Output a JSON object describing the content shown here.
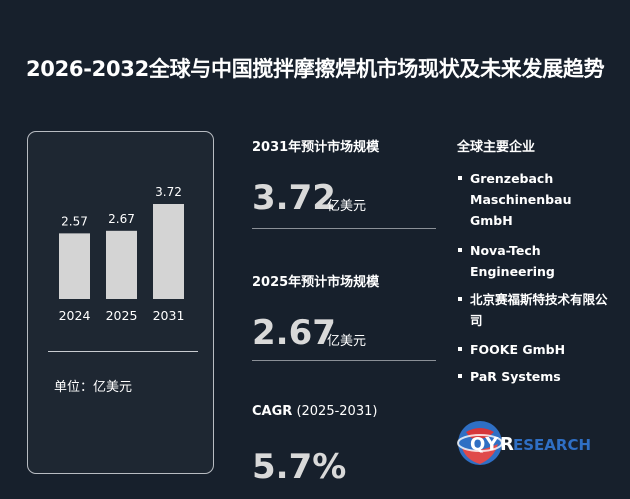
{
  "header": {
    "title": "2026-2032全球与中国搅拌摩擦焊机市场现状及未来发展趋势"
  },
  "chart_data": {
    "type": "bar",
    "categories": [
      "2024",
      "2025",
      "2031"
    ],
    "values": [
      2.57,
      2.67,
      3.72
    ],
    "data_labels": [
      "2.57",
      "2.67",
      "3.72"
    ],
    "unit_label": "单位：亿美元",
    "bar_color": "#d4d4d4",
    "ylim": [
      0,
      3.72
    ]
  },
  "metrics": {
    "m2031": {
      "label": "2031年预计市场规模",
      "value": "3.72",
      "unit": "亿美元"
    },
    "m2025": {
      "label": "2025年预计市场规模",
      "value": "2.67",
      "unit": "亿美元"
    },
    "cagr": {
      "label": "CAGR",
      "period": "(2025-2031)",
      "value": "5.7%"
    }
  },
  "companies": {
    "title": "全球主要企业",
    "items": [
      "Grenzebach Maschinenbau GmbH",
      "Nova-Tech Engineering",
      "北京赛福斯特技术有限公司",
      "FOOKE GmbH",
      "PaR Systems"
    ]
  },
  "logo": {
    "text_q": "QY",
    "text_r": "R",
    "text_rest": "ESEARCH",
    "icon": "globe-icon",
    "color_primary": "#d6363a",
    "color_secondary": "#2f6fc4"
  },
  "colors": {
    "background": "#17202c",
    "bar": "#d4d4d4",
    "value_text": "#d9d9d9"
  }
}
